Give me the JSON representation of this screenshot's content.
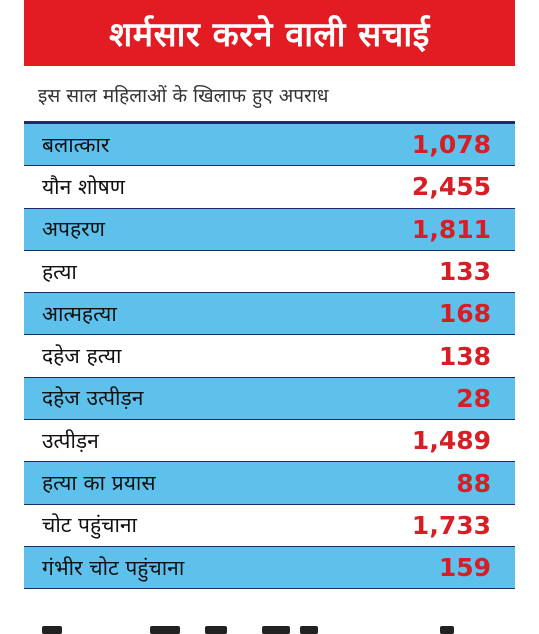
{
  "header": {
    "title": "शर्मसार करने वाली सचाई",
    "subtitle": "इस साल महिलाओं के खिलाफ हुए अपराध"
  },
  "colors": {
    "title_bg": "#e31b23",
    "row_blue": "#5dc1ec",
    "row_white": "#ffffff",
    "value_red": "#d81e25",
    "rule_navy": "#1c2a6b"
  },
  "rows": [
    {
      "label": "बलात्कार",
      "value": "1,078"
    },
    {
      "label": "यौन शोषण",
      "value": "2,455"
    },
    {
      "label": "अपहरण",
      "value": "1,811"
    },
    {
      "label": "हत्या",
      "value": "133"
    },
    {
      "label": "आत्महत्या",
      "value": "168"
    },
    {
      "label": "दहेज हत्या",
      "value": "138"
    },
    {
      "label": "दहेज उत्पीड़न",
      "value": "28"
    },
    {
      "label": "उत्पीड़न",
      "value": "1,489"
    },
    {
      "label": "हत्या का प्रयास",
      "value": "88"
    },
    {
      "label": "चोट पहुंचाना",
      "value": "1,733"
    },
    {
      "label": "गंभीर चोट पहुंचाना",
      "value": "159"
    }
  ]
}
